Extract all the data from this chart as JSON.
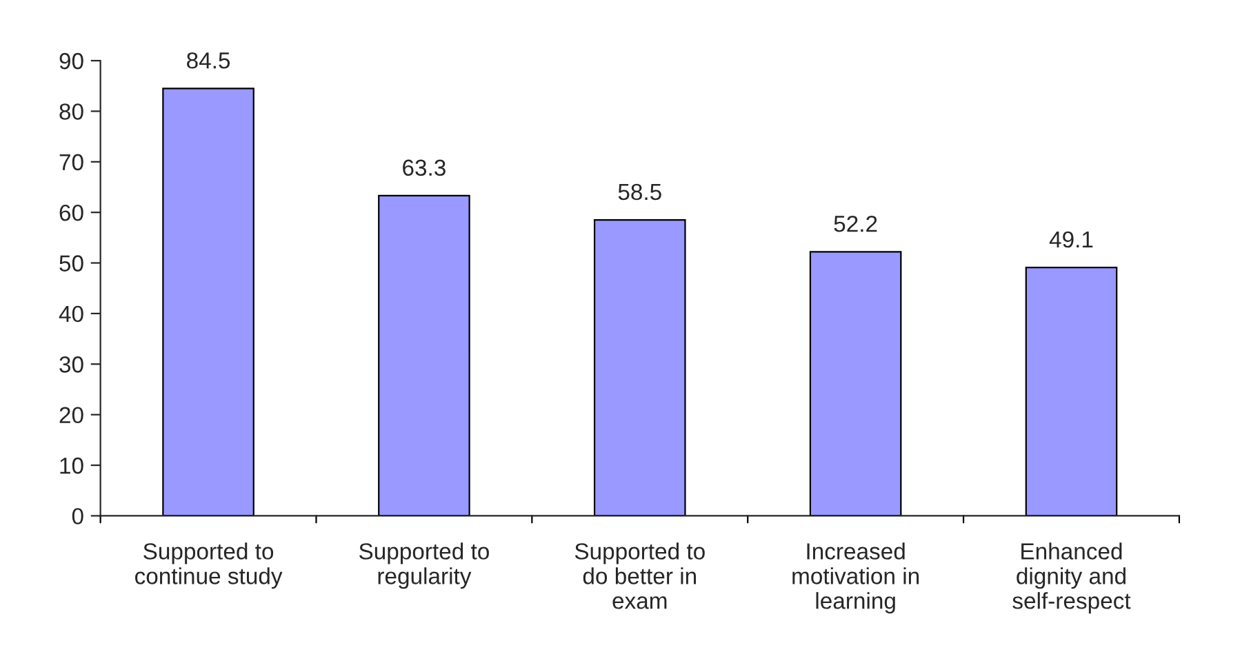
{
  "chart_data": {
    "type": "bar",
    "categories": [
      "Supported to\ncontinue study",
      "Supported to\nregularity",
      "Supported to\ndo better in\nexam",
      "Increased\nmotivation in\nlearning",
      "Enhanced\ndignity and\nself-respect"
    ],
    "values": [
      84.5,
      63.3,
      58.5,
      52.2,
      49.1
    ],
    "color": "#9999ff",
    "ylim": [
      0,
      90
    ],
    "yticks": [
      0,
      10,
      20,
      30,
      40,
      50,
      60,
      70,
      80,
      90
    ],
    "data_labels": true,
    "grid": false,
    "legend": false
  }
}
